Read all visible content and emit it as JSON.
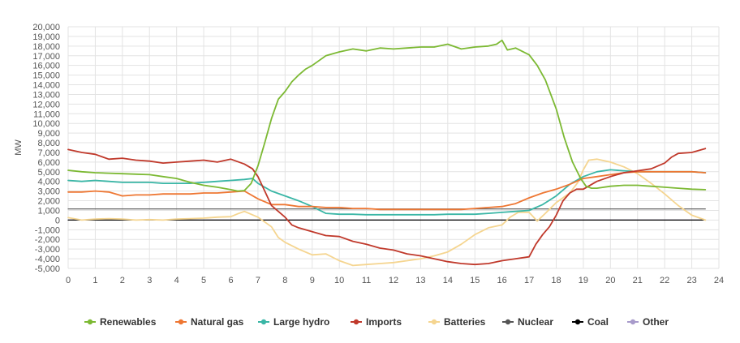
{
  "chart_data": {
    "type": "line",
    "title": "",
    "xlabel": "",
    "ylabel": "MW",
    "xlim": [
      0,
      24
    ],
    "ylim": [
      -5000,
      20000
    ],
    "xticks": [
      "0",
      "1",
      "2",
      "3",
      "4",
      "5",
      "6",
      "7",
      "8",
      "9",
      "10",
      "11",
      "12",
      "13",
      "14",
      "15",
      "16",
      "17",
      "18",
      "19",
      "20",
      "21",
      "22",
      "23",
      "24"
    ],
    "yticks": [
      "20,000",
      "19,000",
      "18,000",
      "17,000",
      "16,000",
      "15,000",
      "14,000",
      "13,000",
      "12,000",
      "11,000",
      "10,000",
      "9,000",
      "8,000",
      "7,000",
      "6,000",
      "5,000",
      "4,000",
      "3,000",
      "2,000",
      "1,000",
      "0",
      "-1,000",
      "-2,000",
      "-3,000",
      "-4,000",
      "-5,000"
    ],
    "grid": true,
    "legend_position": "bottom",
    "series": [
      {
        "name": "Renewables",
        "color": "#7cb933",
        "x": [
          0,
          0.5,
          1,
          1.5,
          2,
          2.5,
          3,
          3.5,
          4,
          4.5,
          5,
          5.5,
          6,
          6.25,
          6.5,
          6.75,
          7,
          7.25,
          7.5,
          7.75,
          8,
          8.25,
          8.5,
          8.75,
          9,
          9.5,
          10,
          10.5,
          11,
          11.5,
          12,
          12.5,
          13,
          13.5,
          14,
          14.5,
          15,
          15.5,
          15.8,
          16,
          16.2,
          16.5,
          17,
          17.3,
          17.6,
          18,
          18.3,
          18.6,
          18.9,
          19.1,
          19.3,
          19.5,
          20,
          20.5,
          21,
          21.5,
          22,
          22.5,
          23,
          23.5
        ],
        "y": [
          5150,
          5000,
          4900,
          4850,
          4800,
          4750,
          4700,
          4500,
          4300,
          3900,
          3600,
          3400,
          3150,
          3000,
          3050,
          3800,
          5600,
          8000,
          10500,
          12500,
          13300,
          14300,
          15000,
          15600,
          16000,
          17000,
          17400,
          17700,
          17500,
          17800,
          17700,
          17800,
          17900,
          17900,
          18200,
          17700,
          17900,
          18000,
          18200,
          18600,
          17600,
          17800,
          17100,
          16000,
          14500,
          11500,
          8500,
          6000,
          4300,
          3500,
          3300,
          3300,
          3500,
          3600,
          3600,
          3500,
          3400,
          3300,
          3200,
          3150
        ]
      },
      {
        "name": "Natural gas",
        "color": "#ee7733",
        "x": [
          0,
          0.5,
          1,
          1.5,
          2,
          2.5,
          3,
          3.5,
          4,
          4.5,
          5,
          5.5,
          6,
          6.5,
          7,
          7.5,
          8,
          8.5,
          9,
          9.5,
          10,
          10.5,
          11,
          11.5,
          12,
          12.5,
          13,
          13.5,
          14,
          14.5,
          15,
          15.5,
          16,
          16.5,
          17,
          17.5,
          18,
          18.5,
          19,
          19.5,
          20,
          20.5,
          21,
          21.5,
          22,
          22.5,
          23,
          23.5
        ],
        "y": [
          2900,
          2900,
          3000,
          2900,
          2500,
          2600,
          2600,
          2700,
          2700,
          2700,
          2800,
          2800,
          2900,
          3000,
          2200,
          1600,
          1600,
          1400,
          1400,
          1300,
          1300,
          1200,
          1200,
          1100,
          1100,
          1100,
          1100,
          1100,
          1100,
          1100,
          1200,
          1300,
          1400,
          1700,
          2300,
          2800,
          3200,
          3700,
          4300,
          4500,
          4700,
          4900,
          5000,
          5000,
          5000,
          5000,
          5000,
          4900
        ]
      },
      {
        "name": "Large hydro",
        "color": "#3ab6a6",
        "x": [
          0,
          0.5,
          1,
          1.5,
          2,
          2.5,
          3,
          3.5,
          4,
          4.5,
          5,
          5.5,
          6,
          6.5,
          6.8,
          7,
          7.5,
          8,
          8.5,
          9,
          9.5,
          10,
          10.5,
          11,
          11.5,
          12,
          12.5,
          13,
          13.5,
          14,
          14.5,
          15,
          15.5,
          16,
          16.5,
          17,
          17.5,
          18,
          18.5,
          19,
          19.5,
          20,
          20.5,
          21,
          21.5,
          22,
          22.5,
          23,
          23.5
        ],
        "y": [
          4100,
          4000,
          4100,
          4000,
          3900,
          3900,
          3900,
          3800,
          3800,
          3800,
          3900,
          4000,
          4100,
          4200,
          4300,
          3800,
          3000,
          2500,
          2000,
          1400,
          700,
          600,
          600,
          550,
          550,
          550,
          550,
          550,
          550,
          600,
          600,
          600,
          700,
          800,
          900,
          1000,
          1600,
          2500,
          3700,
          4500,
          5000,
          5200,
          5100,
          5000,
          5000,
          5000,
          5000,
          5000,
          4900
        ]
      },
      {
        "name": "Imports",
        "color": "#c0392b",
        "x": [
          0,
          0.5,
          1,
          1.5,
          2,
          2.5,
          3,
          3.5,
          4,
          4.5,
          5,
          5.5,
          6,
          6.5,
          6.8,
          7,
          7.25,
          7.5,
          7.75,
          8,
          8.25,
          8.5,
          9,
          9.5,
          10,
          10.5,
          11,
          11.5,
          12,
          12.5,
          13,
          13.5,
          14,
          14.5,
          15,
          15.5,
          16,
          16.5,
          17,
          17.25,
          17.5,
          17.75,
          18,
          18.25,
          18.5,
          18.75,
          19,
          19.5,
          20,
          20.5,
          21,
          21.5,
          22,
          22.25,
          22.5,
          23,
          23.5
        ],
        "y": [
          7300,
          7000,
          6800,
          6300,
          6400,
          6200,
          6100,
          5900,
          6000,
          6100,
          6200,
          6000,
          6300,
          5800,
          5300,
          4500,
          3000,
          1500,
          900,
          300,
          -500,
          -800,
          -1200,
          -1600,
          -1700,
          -2200,
          -2500,
          -2900,
          -3100,
          -3500,
          -3700,
          -4000,
          -4300,
          -4500,
          -4600,
          -4500,
          -4200,
          -4000,
          -3800,
          -2500,
          -1500,
          -700,
          500,
          2000,
          2800,
          3200,
          3200,
          4000,
          4500,
          4900,
          5100,
          5300,
          5900,
          6500,
          6900,
          7000,
          7400
        ]
      },
      {
        "name": "Batteries",
        "color": "#f5d590",
        "x": [
          0,
          0.5,
          1,
          1.5,
          2,
          2.5,
          3,
          3.5,
          4,
          4.5,
          5,
          5.5,
          6,
          6.25,
          6.5,
          7,
          7.5,
          7.75,
          8,
          8.5,
          9,
          9.5,
          10,
          10.5,
          11,
          11.5,
          12,
          12.5,
          13,
          13.5,
          14,
          14.5,
          15,
          15.5,
          16,
          16.3,
          16.6,
          17,
          17.3,
          17.6,
          18,
          18.5,
          18.8,
          19,
          19.2,
          19.5,
          20,
          20.5,
          21,
          21.5,
          22,
          22.5,
          23,
          23.5
        ],
        "y": [
          250,
          0,
          100,
          150,
          100,
          0,
          50,
          0,
          100,
          150,
          200,
          300,
          350,
          650,
          900,
          300,
          -700,
          -1800,
          -2300,
          -3000,
          -3600,
          -3500,
          -4200,
          -4700,
          -4600,
          -4500,
          -4400,
          -4200,
          -4000,
          -3700,
          -3300,
          -2500,
          -1500,
          -800,
          -500,
          300,
          800,
          800,
          -100,
          700,
          1800,
          2800,
          3900,
          5200,
          6200,
          6300,
          6000,
          5500,
          4800,
          3800,
          2700,
          1500,
          500,
          0
        ]
      },
      {
        "name": "Nuclear",
        "color": "#555555",
        "x": [
          0,
          23.5
        ],
        "y": [
          1150,
          1150
        ]
      },
      {
        "name": "Coal",
        "color": "#000000",
        "x": [
          0,
          23.5
        ],
        "y": [
          0,
          0
        ]
      },
      {
        "name": "Other",
        "color": "#a89bcb",
        "x": [
          0,
          23.5
        ],
        "y": [
          0,
          0
        ]
      }
    ]
  }
}
